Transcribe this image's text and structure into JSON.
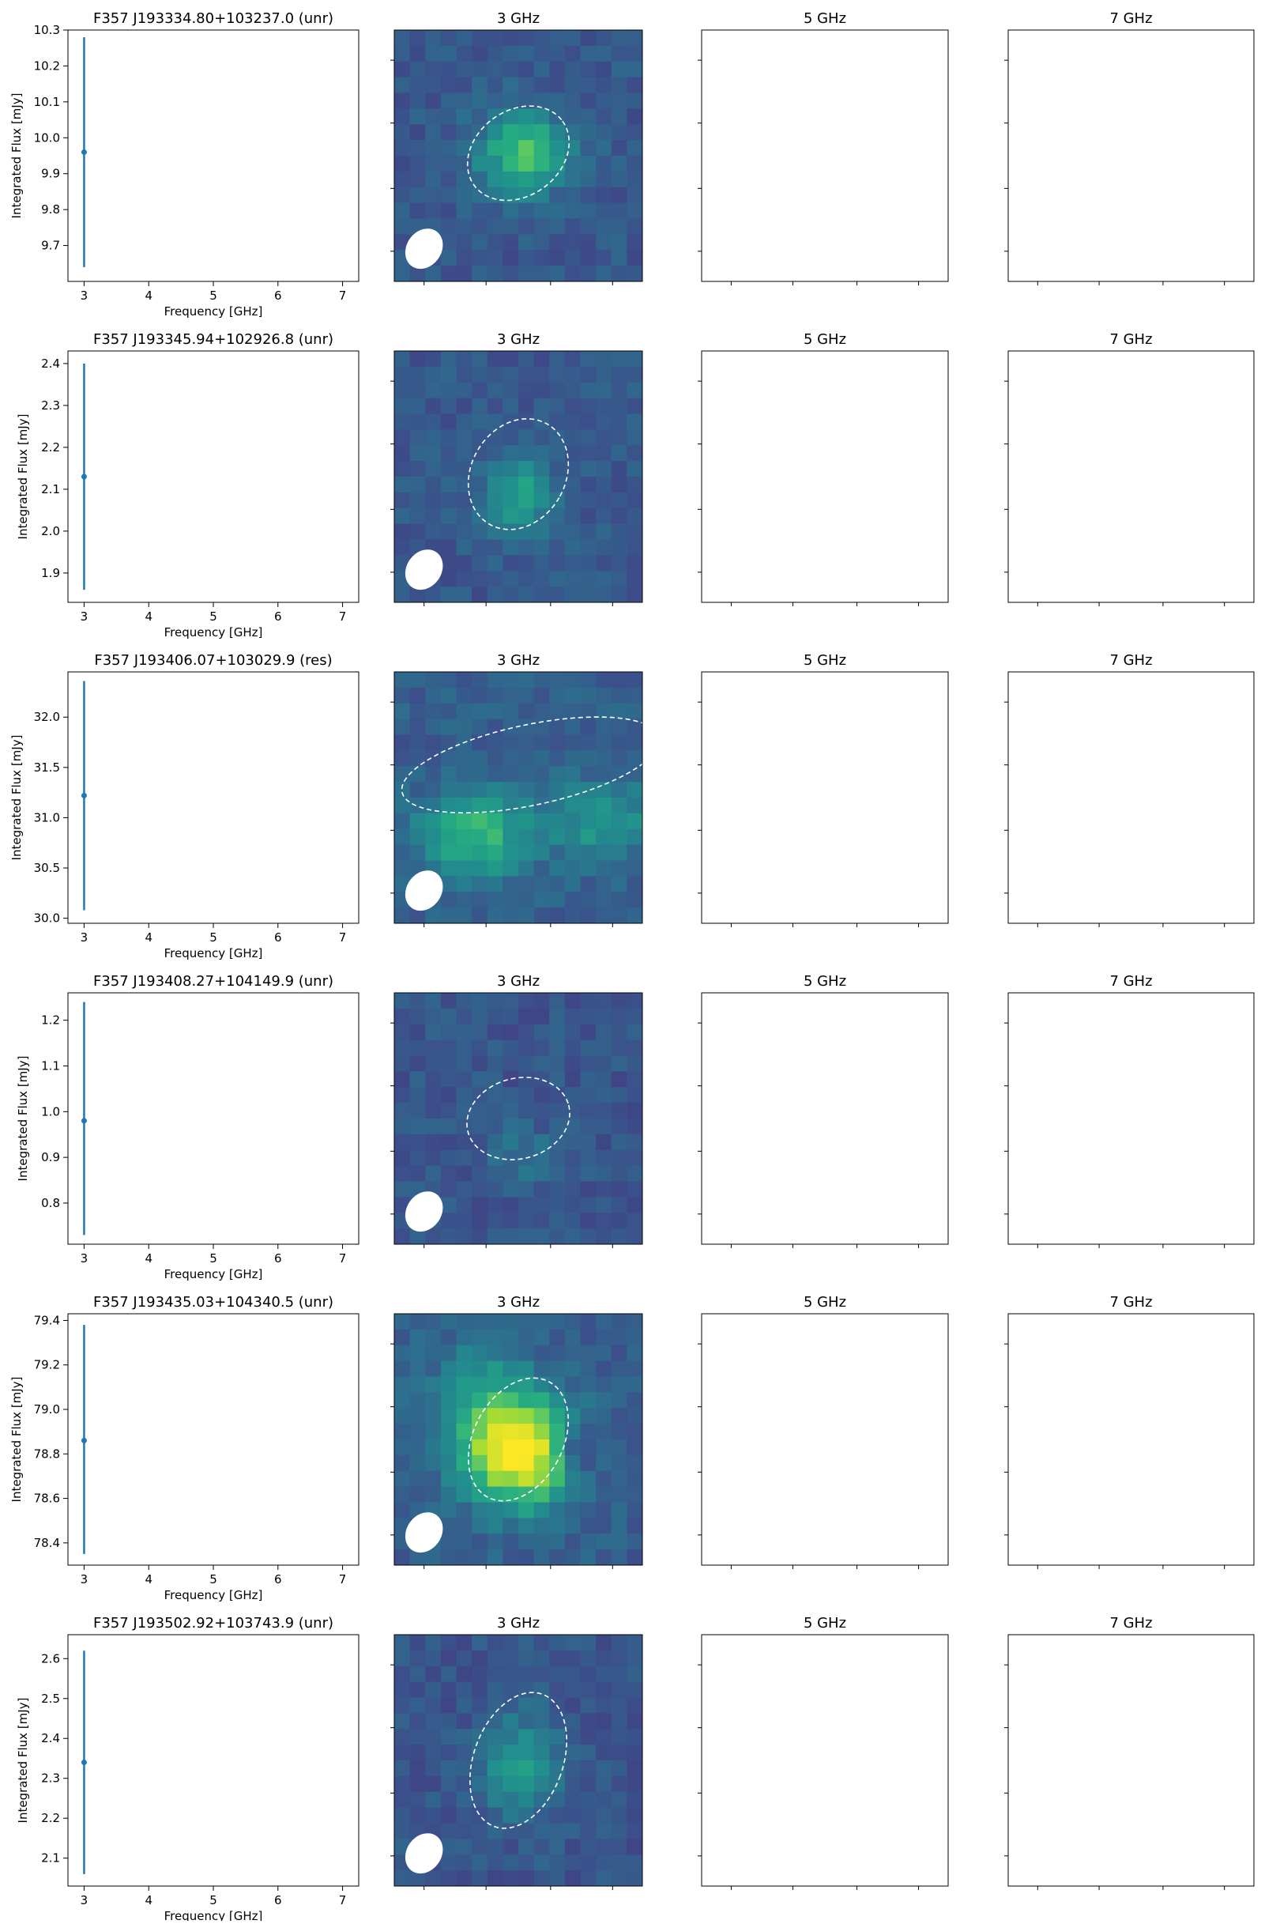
{
  "chart_data": [
    {
      "type": "scatter",
      "title": "F357 J193334.80+103237.0 (unr)",
      "xlabel": "Frequency [GHz]",
      "ylabel": "Integrated Flux [mJy]",
      "xlim": [
        2.75,
        7.25
      ],
      "ylim": [
        9.6,
        10.3
      ],
      "xticks": [
        3,
        4,
        5,
        6,
        7
      ],
      "yticks": [
        9.7,
        9.8,
        9.9,
        10.0,
        10.1,
        10.2,
        10.3
      ],
      "points": [
        {
          "x": 3,
          "y": 9.96,
          "yerr_low": 9.64,
          "yerr_high": 10.28
        }
      ],
      "panels": [
        {
          "title": "3 GHz",
          "image": "map-present"
        },
        {
          "title": "5 GHz",
          "image": "empty"
        },
        {
          "title": "7 GHz",
          "image": "empty"
        }
      ]
    },
    {
      "type": "scatter",
      "title": "F357 J193345.94+102926.8 (unr)",
      "xlabel": "Frequency [GHz]",
      "ylabel": "Integrated Flux [mJy]",
      "xlim": [
        2.75,
        7.25
      ],
      "ylim": [
        1.83,
        2.43
      ],
      "xticks": [
        3,
        4,
        5,
        6,
        7
      ],
      "yticks": [
        1.9,
        2.0,
        2.1,
        2.2,
        2.3,
        2.4
      ],
      "points": [
        {
          "x": 3,
          "y": 2.13,
          "yerr_low": 1.86,
          "yerr_high": 2.4
        }
      ],
      "panels": [
        {
          "title": "3 GHz",
          "image": "map-present"
        },
        {
          "title": "5 GHz",
          "image": "empty"
        },
        {
          "title": "7 GHz",
          "image": "empty"
        }
      ]
    },
    {
      "type": "scatter",
      "title": "F357 J193406.07+103029.9 (res)",
      "xlabel": "Frequency [GHz]",
      "ylabel": "Integrated Flux [mJy]",
      "xlim": [
        2.75,
        7.25
      ],
      "ylim": [
        29.95,
        32.45
      ],
      "xticks": [
        3,
        4,
        5,
        6,
        7
      ],
      "yticks": [
        30.0,
        30.5,
        31.0,
        31.5,
        32.0
      ],
      "points": [
        {
          "x": 3,
          "y": 31.22,
          "yerr_low": 30.08,
          "yerr_high": 32.36
        }
      ],
      "panels": [
        {
          "title": "3 GHz",
          "image": "map-present"
        },
        {
          "title": "5 GHz",
          "image": "empty"
        },
        {
          "title": "7 GHz",
          "image": "empty"
        }
      ]
    },
    {
      "type": "scatter",
      "title": "F357 J193408.27+104149.9 (unr)",
      "xlabel": "Frequency [GHz]",
      "ylabel": "Integrated Flux [mJy]",
      "xlim": [
        2.75,
        7.25
      ],
      "ylim": [
        0.71,
        1.26
      ],
      "xticks": [
        3,
        4,
        5,
        6,
        7
      ],
      "yticks": [
        0.8,
        0.9,
        1.0,
        1.1,
        1.2
      ],
      "points": [
        {
          "x": 3,
          "y": 0.98,
          "yerr_low": 0.73,
          "yerr_high": 1.24
        }
      ],
      "panels": [
        {
          "title": "3 GHz",
          "image": "map-present"
        },
        {
          "title": "5 GHz",
          "image": "empty"
        },
        {
          "title": "7 GHz",
          "image": "empty"
        }
      ]
    },
    {
      "type": "scatter",
      "title": "F357 J193435.03+104340.5 (unr)",
      "xlabel": "Frequency [GHz]",
      "ylabel": "Integrated Flux [mJy]",
      "xlim": [
        2.75,
        7.25
      ],
      "ylim": [
        78.3,
        79.43
      ],
      "xticks": [
        3,
        4,
        5,
        6,
        7
      ],
      "yticks": [
        78.4,
        78.6,
        78.8,
        79.0,
        79.2,
        79.4
      ],
      "points": [
        {
          "x": 3,
          "y": 78.86,
          "yerr_low": 78.35,
          "yerr_high": 79.38
        }
      ],
      "panels": [
        {
          "title": "3 GHz",
          "image": "map-present"
        },
        {
          "title": "5 GHz",
          "image": "empty"
        },
        {
          "title": "7 GHz",
          "image": "empty"
        }
      ]
    },
    {
      "type": "scatter",
      "title": "F357 J193502.92+103743.9 (unr)",
      "xlabel": "Frequency [GHz]",
      "ylabel": "Integrated Flux [mJy]",
      "xlim": [
        2.75,
        7.25
      ],
      "ylim": [
        2.03,
        2.66
      ],
      "xticks": [
        3,
        4,
        5,
        6,
        7
      ],
      "yticks": [
        2.1,
        2.2,
        2.3,
        2.4,
        2.5,
        2.6
      ],
      "points": [
        {
          "x": 3,
          "y": 2.34,
          "yerr_low": 2.06,
          "yerr_high": 2.62
        }
      ],
      "panels": [
        {
          "title": "3 GHz",
          "image": "map-present"
        },
        {
          "title": "5 GHz",
          "image": "empty"
        },
        {
          "title": "7 GHz",
          "image": "empty"
        }
      ]
    }
  ],
  "style": {
    "series_color": "#1f77b4",
    "map_colormap": "viridis",
    "ellipse_color": "#ffffff",
    "beam_color": "#ffffff"
  }
}
